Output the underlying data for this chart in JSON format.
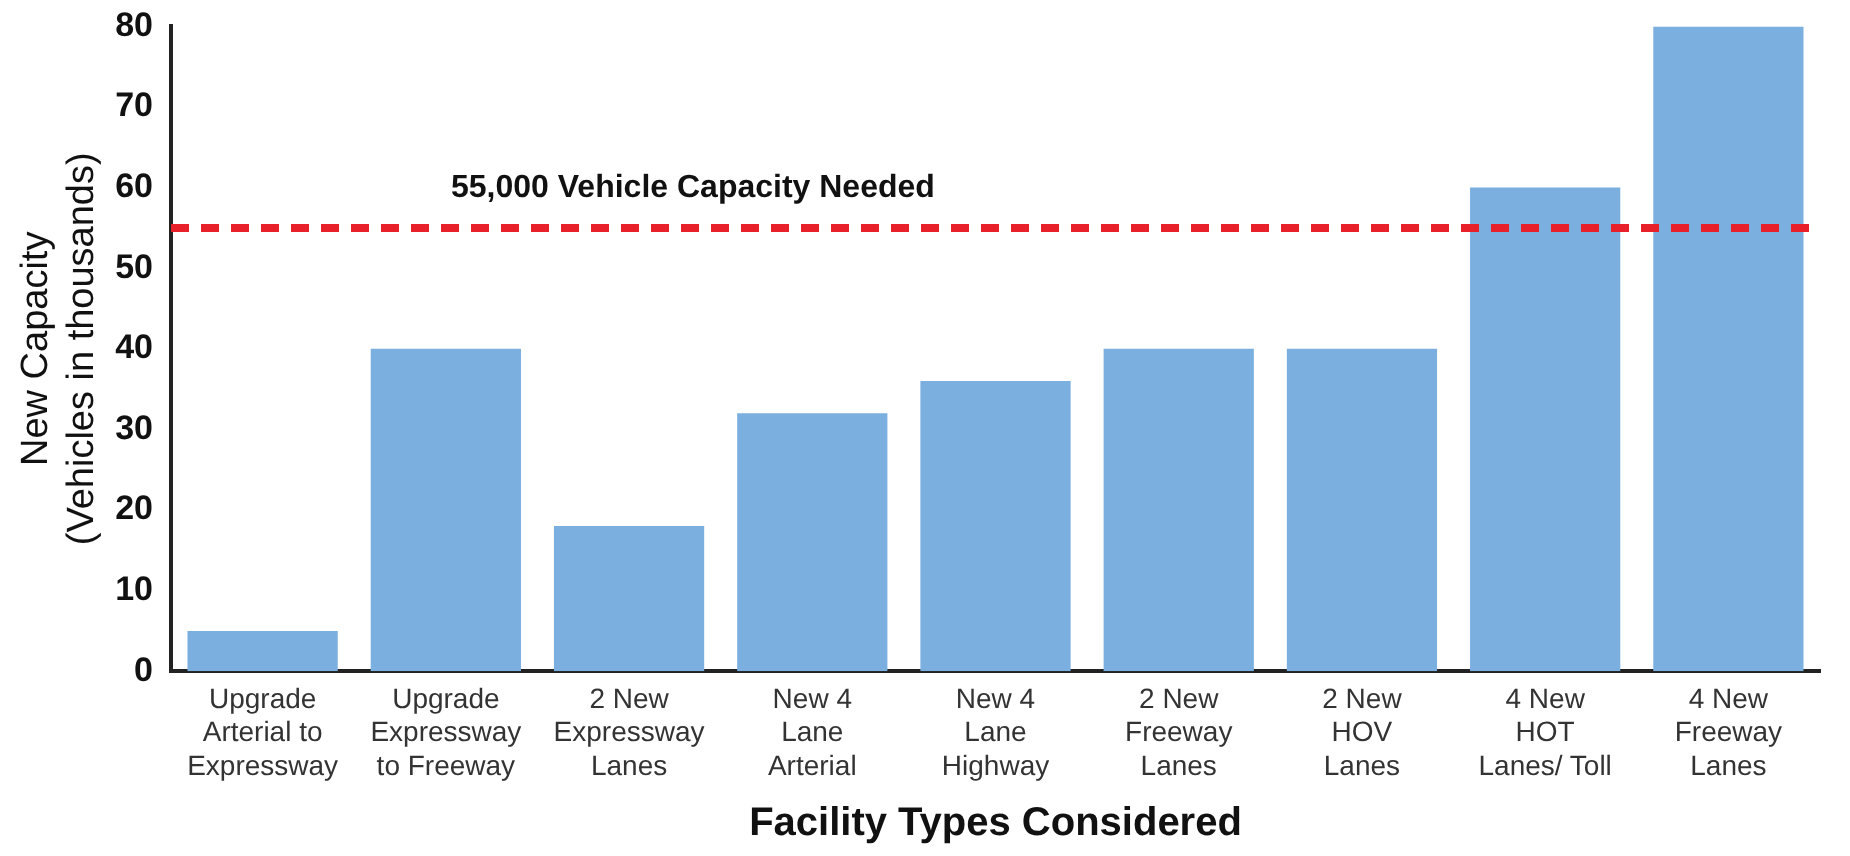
{
  "chart_data": {
    "type": "bar",
    "xlabel": "Facility Types Considered",
    "ylabel": "New Capacity\n(Vehicles in thousands)",
    "categories": [
      "Upgrade Arterial to Expressway",
      "Upgrade Expressway to Freeway",
      "2 New Expressway Lanes",
      "New 4 Lane Arterial",
      "New 4 Lane Highway",
      "2 New Freeway Lanes",
      "2 New HOV Lanes",
      "4 New HOT Lanes/ Toll",
      "4 New Freeway Lanes"
    ],
    "values": [
      5,
      40,
      18,
      32,
      36,
      40,
      40,
      60,
      80
    ],
    "color": "#7aafe0",
    "ylim": [
      0,
      80
    ],
    "yticks": [
      0,
      10,
      20,
      30,
      40,
      50,
      60,
      70,
      80
    ],
    "grid": false,
    "legend": false,
    "ref_lines": [
      {
        "axis": "y",
        "value": 55,
        "label": "55,000 Vehicle Capacity Needed",
        "color": "#e8202a",
        "line_style": "dashed"
      }
    ]
  }
}
